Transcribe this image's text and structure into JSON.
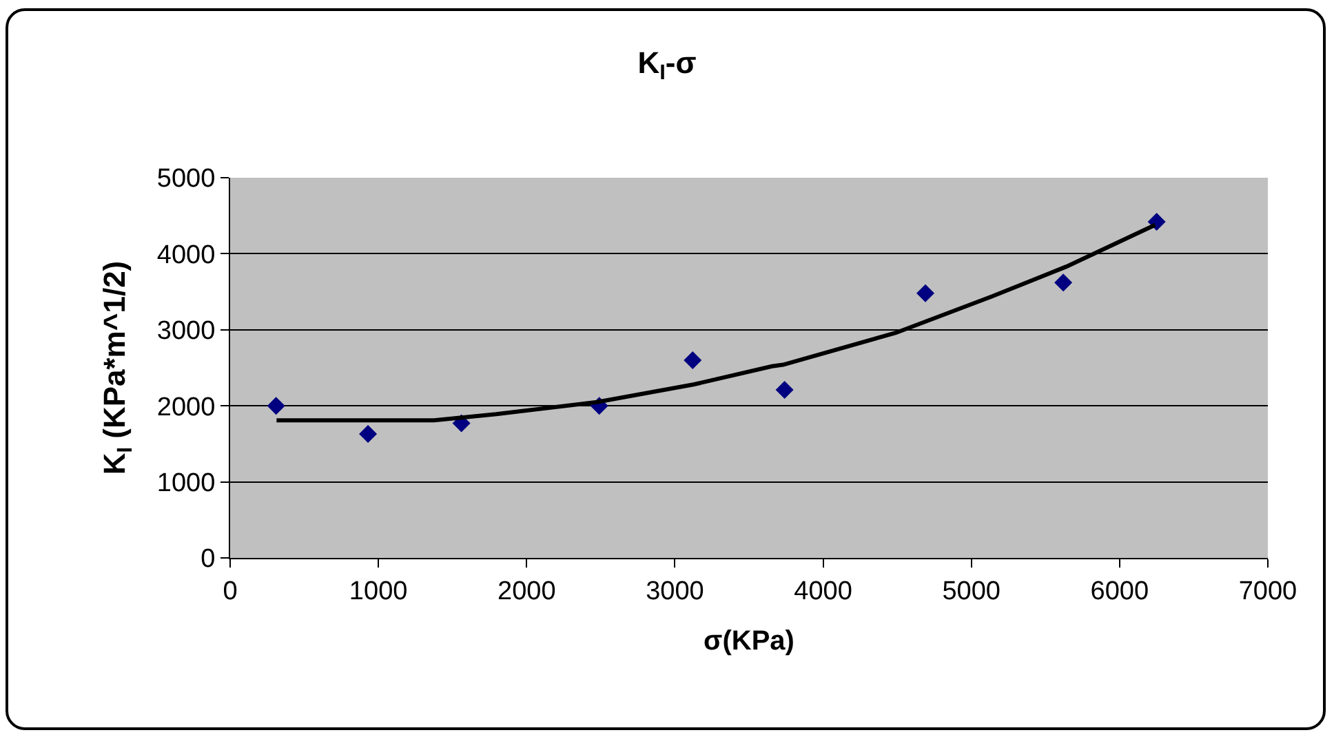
{
  "chart_data": {
    "type": "scatter",
    "title": "K$_{I}$-σ",
    "xlabel": "σ(KPa)",
    "ylabel": "K$_{I}$ (KPa*m^1/2)",
    "xlim": [
      0,
      7000
    ],
    "xticks": [
      0,
      1000,
      2000,
      3000,
      4000,
      5000,
      6000,
      7000
    ],
    "ylim": [
      0,
      5000
    ],
    "yticks": [
      0,
      1000,
      2000,
      3000,
      4000,
      5000
    ],
    "grid": "y",
    "marker": "diamond",
    "series": [
      {
        "color": "#000080",
        "x": [
          310,
          930,
          1560,
          2490,
          3120,
          3740,
          4690,
          5620,
          6250
        ],
        "values": [
          2000,
          1630,
          1770,
          2000,
          2600,
          2210,
          3480,
          3620,
          4420
        ]
      },
      {
        "type": "line",
        "color": "#000000",
        "marker": "none",
        "line_style": "solid",
        "x": [
          313,
          1375,
          1795,
          2475,
          3125,
          3655,
          3730,
          4490,
          5140,
          5640,
          6240
        ],
        "values": [
          1810,
          1810,
          1890,
          2050,
          2280,
          2520,
          2540,
          2960,
          3440,
          3830,
          4380
        ]
      }
    ]
  }
}
